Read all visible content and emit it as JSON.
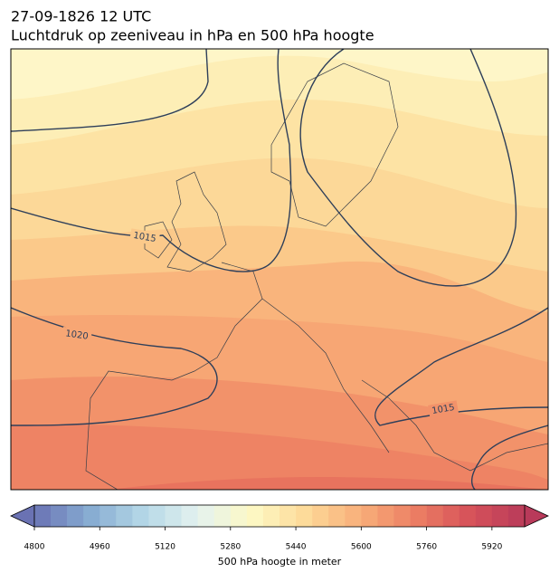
{
  "header": {
    "line1": "27-09-1826 12 UTC",
    "line2": "Luchtdruk op zeeniveau in hPa en 500 hPa hoogte"
  },
  "isobar_labels": [
    1015,
    1020,
    1015
  ],
  "colorbar": {
    "label": "500 hPa hoogte in meter",
    "lim": [
      4800,
      6000
    ],
    "ticks": [
      4800,
      4960,
      5120,
      5280,
      5440,
      5600,
      5760,
      5920
    ],
    "levels": [
      4800,
      4840,
      4880,
      4920,
      4960,
      5000,
      5040,
      5080,
      5120,
      5160,
      5200,
      5240,
      5280,
      5320,
      5360,
      5400,
      5440,
      5480,
      5520,
      5560,
      5600,
      5640,
      5680,
      5720,
      5760,
      5800,
      5840,
      5880,
      5920,
      5960,
      6000
    ],
    "colormap": [
      "#6a72b3",
      "#86abd1",
      "#b4d7e7",
      "#e4f2ef",
      "#fdf9c4",
      "#fdd998",
      "#f8ae79",
      "#ec7e63",
      "#d6525a",
      "#b93a5a"
    ]
  }
}
